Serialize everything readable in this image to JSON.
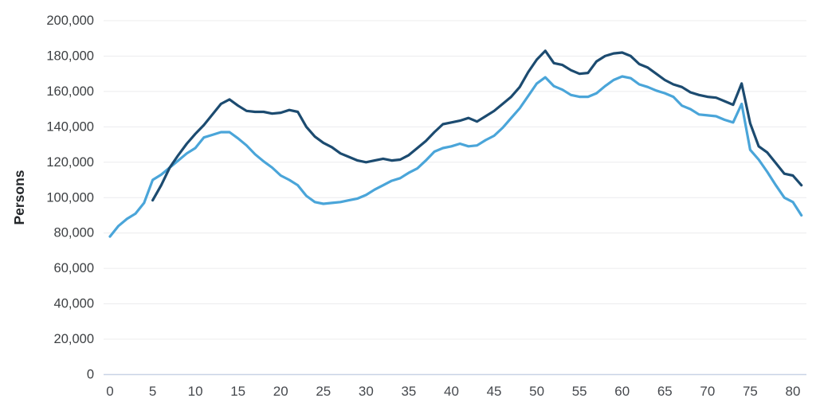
{
  "chart_data": {
    "type": "line",
    "title": "",
    "xlabel": "",
    "ylabel": "Persons",
    "xlim": [
      0,
      81.5
    ],
    "ylim": [
      0,
      200000
    ],
    "grid": "horizontal",
    "legend": "none",
    "x_ticks": [
      {
        "v": 0,
        "label": "0"
      },
      {
        "v": 5,
        "label": "5"
      },
      {
        "v": 10,
        "label": "10"
      },
      {
        "v": 15,
        "label": "15"
      },
      {
        "v": 20,
        "label": "20"
      },
      {
        "v": 25,
        "label": "25"
      },
      {
        "v": 30,
        "label": "30"
      },
      {
        "v": 35,
        "label": "35"
      },
      {
        "v": 40,
        "label": "40"
      },
      {
        "v": 45,
        "label": "45"
      },
      {
        "v": 50,
        "label": "50"
      },
      {
        "v": 55,
        "label": "55"
      },
      {
        "v": 60,
        "label": "60"
      },
      {
        "v": 65,
        "label": "65"
      },
      {
        "v": 70,
        "label": "70"
      },
      {
        "v": 75,
        "label": "75"
      },
      {
        "v": 80,
        "label": "80"
      }
    ],
    "y_ticks": [
      {
        "v": 0,
        "label": "0"
      },
      {
        "v": 20000,
        "label": "20,000"
      },
      {
        "v": 40000,
        "label": "40,000"
      },
      {
        "v": 60000,
        "label": "60,000"
      },
      {
        "v": 80000,
        "label": "80,000"
      },
      {
        "v": 100000,
        "label": "100,000"
      },
      {
        "v": 120000,
        "label": "120,000"
      },
      {
        "v": 140000,
        "label": "140,000"
      },
      {
        "v": 160000,
        "label": "160,000"
      },
      {
        "v": 180000,
        "label": "180,000"
      },
      {
        "v": 200000,
        "label": "200,000"
      }
    ],
    "colors": {
      "light_series": "#4aa5d9",
      "dark_series": "#1c4b70",
      "gridline": "#ececee",
      "axis_baseline": "#c9d3e6",
      "tick_text": "#3d4043"
    },
    "series": [
      {
        "name": "light-blue-series",
        "color": "#4aa5d9",
        "start_age": 0,
        "values": [
          78000,
          84000,
          88000,
          91000,
          97000,
          110000,
          113000,
          117000,
          121000,
          125000,
          128000,
          134000,
          135500,
          137000,
          137000,
          133500,
          129500,
          124500,
          120500,
          117000,
          112500,
          110000,
          107000,
          101000,
          97500,
          96500,
          97000,
          97500,
          98500,
          99500,
          101500,
          104500,
          107000,
          109500,
          111000,
          114000,
          116500,
          121000,
          126000,
          128000,
          129000,
          130500,
          129000,
          129500,
          132500,
          135000,
          139500,
          145000,
          150500,
          157500,
          164500,
          168000,
          163000,
          161000,
          158000,
          157000,
          157000,
          159000,
          163000,
          166500,
          168500,
          167500,
          164000,
          162500,
          160500,
          159000,
          157000,
          152000,
          150000,
          147000,
          146500,
          146000,
          144000,
          142500,
          153000,
          127000,
          121500,
          114500,
          107000,
          100000,
          97500,
          90000
        ]
      },
      {
        "name": "dark-blue-series",
        "color": "#1c4b70",
        "start_age": 5,
        "values": [
          98500,
          107000,
          117000,
          124000,
          130500,
          136000,
          141000,
          147000,
          153000,
          155500,
          152000,
          149000,
          148500,
          148500,
          147500,
          148000,
          149500,
          148500,
          140000,
          134500,
          131000,
          128500,
          125000,
          123000,
          121000,
          120000,
          121000,
          122000,
          121000,
          121500,
          124000,
          128000,
          132000,
          137000,
          141500,
          142500,
          143500,
          145000,
          143000,
          146000,
          149000,
          153000,
          157000,
          162500,
          171000,
          178000,
          183000,
          176000,
          175000,
          172000,
          170000,
          170500,
          177000,
          180000,
          181500,
          182000,
          180000,
          175500,
          173500,
          170000,
          166500,
          164000,
          162500,
          159500,
          158000,
          157000,
          156500,
          154500,
          152500,
          164500,
          142000,
          129000,
          125500,
          119500,
          113500,
          112500,
          107000
        ]
      }
    ]
  }
}
